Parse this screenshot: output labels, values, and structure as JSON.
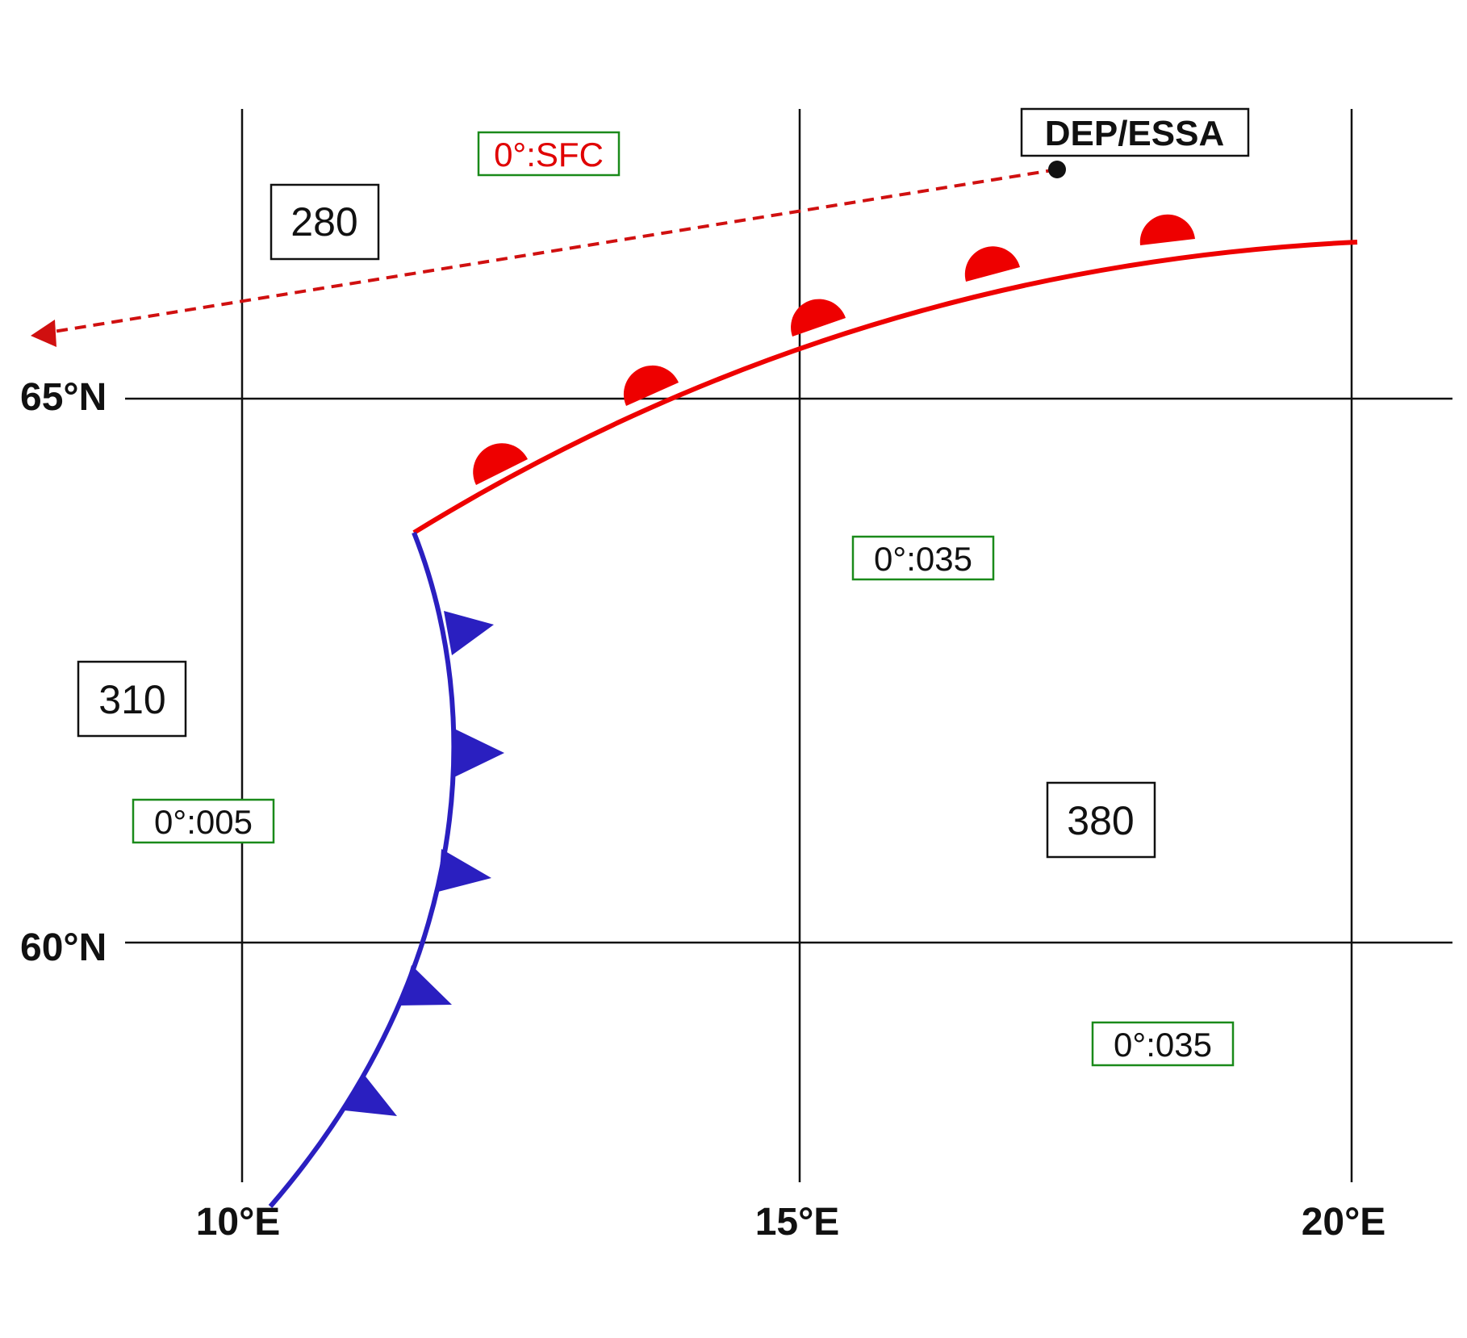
{
  "grid": {
    "lat_labels": [
      "65°N",
      "60°N"
    ],
    "lon_labels": [
      "10°E",
      "15°E",
      "20°E"
    ]
  },
  "departure": {
    "label": "DEP/ESSA"
  },
  "flight_levels": [
    "280",
    "310",
    "380"
  ],
  "freezing_levels": [
    {
      "text": "0°:SFC",
      "color": "#e00000"
    },
    {
      "text": "0°:035",
      "color": "#111111"
    },
    {
      "text": "0°:005",
      "color": "#111111"
    },
    {
      "text": "0°:035",
      "color": "#111111"
    }
  ],
  "colors": {
    "warm_front": "#ee0000",
    "cold_front": "#2a1fc0",
    "route": "#d01010",
    "box_border_freezing": "#1a8a1a",
    "box_border_level": "#111111",
    "grid": "#111111"
  },
  "fronts": {
    "warm": {
      "type": "warm-front"
    },
    "cold": {
      "type": "cold-front"
    }
  },
  "route": {
    "style": "dashed-arrow"
  }
}
